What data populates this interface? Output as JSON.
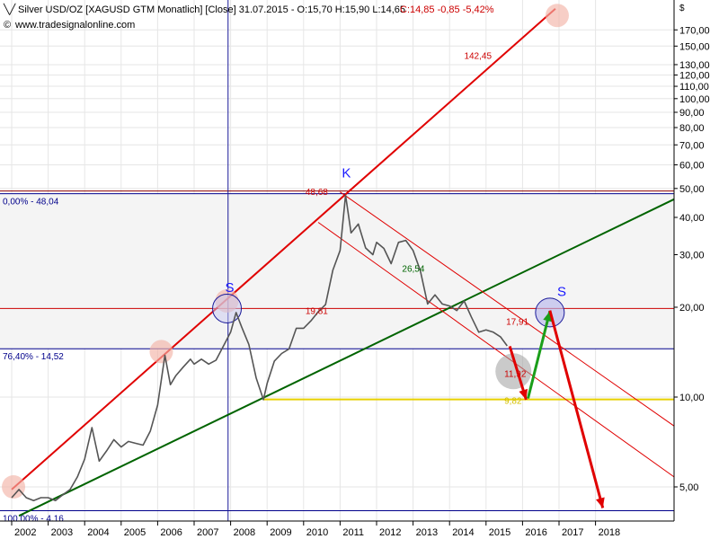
{
  "header": {
    "title": "Silver USD/OZ [XAGUSD GTM  Monatlich] [Close] 31.07.2015 - O:15,70 H:15,90 L:14,65",
    "change": "C:14,85 -0,85 -5,42%",
    "source": "www.tradesignalonline.com"
  },
  "chart_data": {
    "type": "line",
    "title": "Silver USD/OZ [XAGUSD GTM  Monatlich] [Close]",
    "yscale": "log",
    "ylim": [
      4.0,
      190.0
    ],
    "y_ticks": [
      "5,00",
      "10,00",
      "20,00",
      "30,00",
      "40,00",
      "50,00",
      "60,00",
      "70,00",
      "80,00",
      "90,00",
      "100,00",
      "110,00",
      "120,00",
      "130,00",
      "150,00",
      "170,00"
    ],
    "x_ticks": [
      "2002",
      "2003",
      "2004",
      "2005",
      "2006",
      "2007",
      "2008",
      "2009",
      "2010",
      "2011",
      "2012",
      "2013",
      "2014",
      "2015",
      "2016",
      "2017",
      "2018"
    ],
    "series": [
      {
        "color": "#555555",
        "x": [
          2002.0,
          2002.2,
          2002.4,
          2002.6,
          2002.8,
          2003.0,
          2003.2,
          2003.4,
          2003.6,
          2003.8,
          2004.0,
          2004.2,
          2004.4,
          2004.6,
          2004.8,
          2005.0,
          2005.2,
          2005.4,
          2005.6,
          2005.8,
          2006.0,
          2006.2,
          2006.35,
          2006.5,
          2006.7,
          2006.9,
          2007.0,
          2007.2,
          2007.4,
          2007.6,
          2007.8,
          2008.0,
          2008.15,
          2008.3,
          2008.5,
          2008.7,
          2008.9,
          2009.0,
          2009.2,
          2009.4,
          2009.6,
          2009.8,
          2010.0,
          2010.2,
          2010.4,
          2010.6,
          2010.8,
          2011.0,
          2011.15,
          2011.3,
          2011.5,
          2011.7,
          2011.9,
          2012.0,
          2012.2,
          2012.4,
          2012.6,
          2012.8,
          2013.0,
          2013.2,
          2013.4,
          2013.6,
          2013.8,
          2014.0,
          2014.2,
          2014.4,
          2014.6,
          2014.8,
          2015.0,
          2015.2,
          2015.4,
          2015.58
        ],
        "values": [
          4.6,
          4.9,
          4.6,
          4.5,
          4.6,
          4.6,
          4.5,
          4.7,
          4.9,
          5.4,
          6.2,
          7.9,
          6.1,
          6.6,
          7.2,
          6.8,
          7.1,
          7.0,
          6.9,
          7.7,
          9.4,
          13.8,
          11.0,
          11.8,
          12.6,
          13.4,
          12.9,
          13.4,
          12.9,
          13.3,
          14.8,
          16.5,
          19.2,
          17.2,
          15.0,
          11.6,
          9.8,
          11.1,
          13.2,
          14.0,
          14.5,
          17.0,
          17.0,
          18.0,
          19.3,
          20.4,
          26.6,
          31.0,
          47.5,
          35.5,
          38.0,
          31.6,
          30.0,
          33.0,
          31.5,
          28.0,
          33.0,
          33.5,
          31.0,
          26.5,
          20.5,
          22.0,
          20.5,
          20.2,
          19.5,
          21.0,
          18.5,
          16.5,
          16.8,
          16.5,
          15.9,
          14.85
        ]
      }
    ],
    "annotations": {
      "fib_levels": [
        {
          "label": "0,00% - 48,04",
          "value": 48.04,
          "color": "#00008b"
        },
        {
          "label": "76,40% - 14,52",
          "value": 14.52,
          "color": "#00008b"
        },
        {
          "label": "100,00% - 4,16",
          "value": 4.16,
          "color": "#00008b"
        }
      ],
      "value_labels": [
        {
          "text": "142,45",
          "color": "#cc0000"
        },
        {
          "text": "48,68",
          "color": "#cc0000"
        },
        {
          "text": "19,81",
          "color": "#cc0000"
        },
        {
          "text": "26,54",
          "color": "#006400"
        },
        {
          "text": "17,91",
          "color": "#cc0000"
        },
        {
          "text": "11,92",
          "color": "#cc0000"
        },
        {
          "text": "9,82",
          "color": "#d4c000"
        }
      ],
      "markers": [
        {
          "text": "K",
          "color": "#1a1aff"
        },
        {
          "text": "S",
          "color": "#1a1aff"
        },
        {
          "text": "S",
          "color": "#1a1aff"
        }
      ]
    }
  }
}
